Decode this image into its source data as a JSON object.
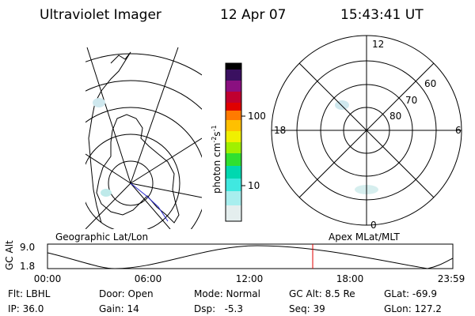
{
  "header": {
    "title": "Ultraviolet Imager",
    "date": "12 Apr 07",
    "time": "15:43:41 UT"
  },
  "colorbar": {
    "label": {
      "base": "photon cm",
      "exp1": "-2",
      "unit": "s",
      "exp2": "-1"
    },
    "ticks": [
      "100",
      "10"
    ]
  },
  "polar_plot": {
    "mlt_labels": [
      "12",
      "18",
      "6",
      "0"
    ],
    "mlat_labels": [
      "60",
      "70",
      "80"
    ]
  },
  "captions": {
    "left": "Geographic Lat/Lon",
    "right": "Apex MLat/MLT"
  },
  "altitude_plot": {
    "ylabel": "GC Alt",
    "yticks": [
      "9.0",
      "1.8"
    ],
    "xticks": [
      "00:00",
      "06:00",
      "12:00",
      "18:00",
      "23:59"
    ]
  },
  "status": {
    "rows": [
      [
        "Flt: LBHL",
        "Door: Open",
        "Mode: Normal",
        "GC Alt: 8.5 Re",
        "GLat: -69.9"
      ],
      [
        "IP: 36.0",
        "Gain: 14",
        "Dsp:   -5.3",
        "Seq: 39",
        "GLon: 127.2"
      ]
    ]
  }
}
